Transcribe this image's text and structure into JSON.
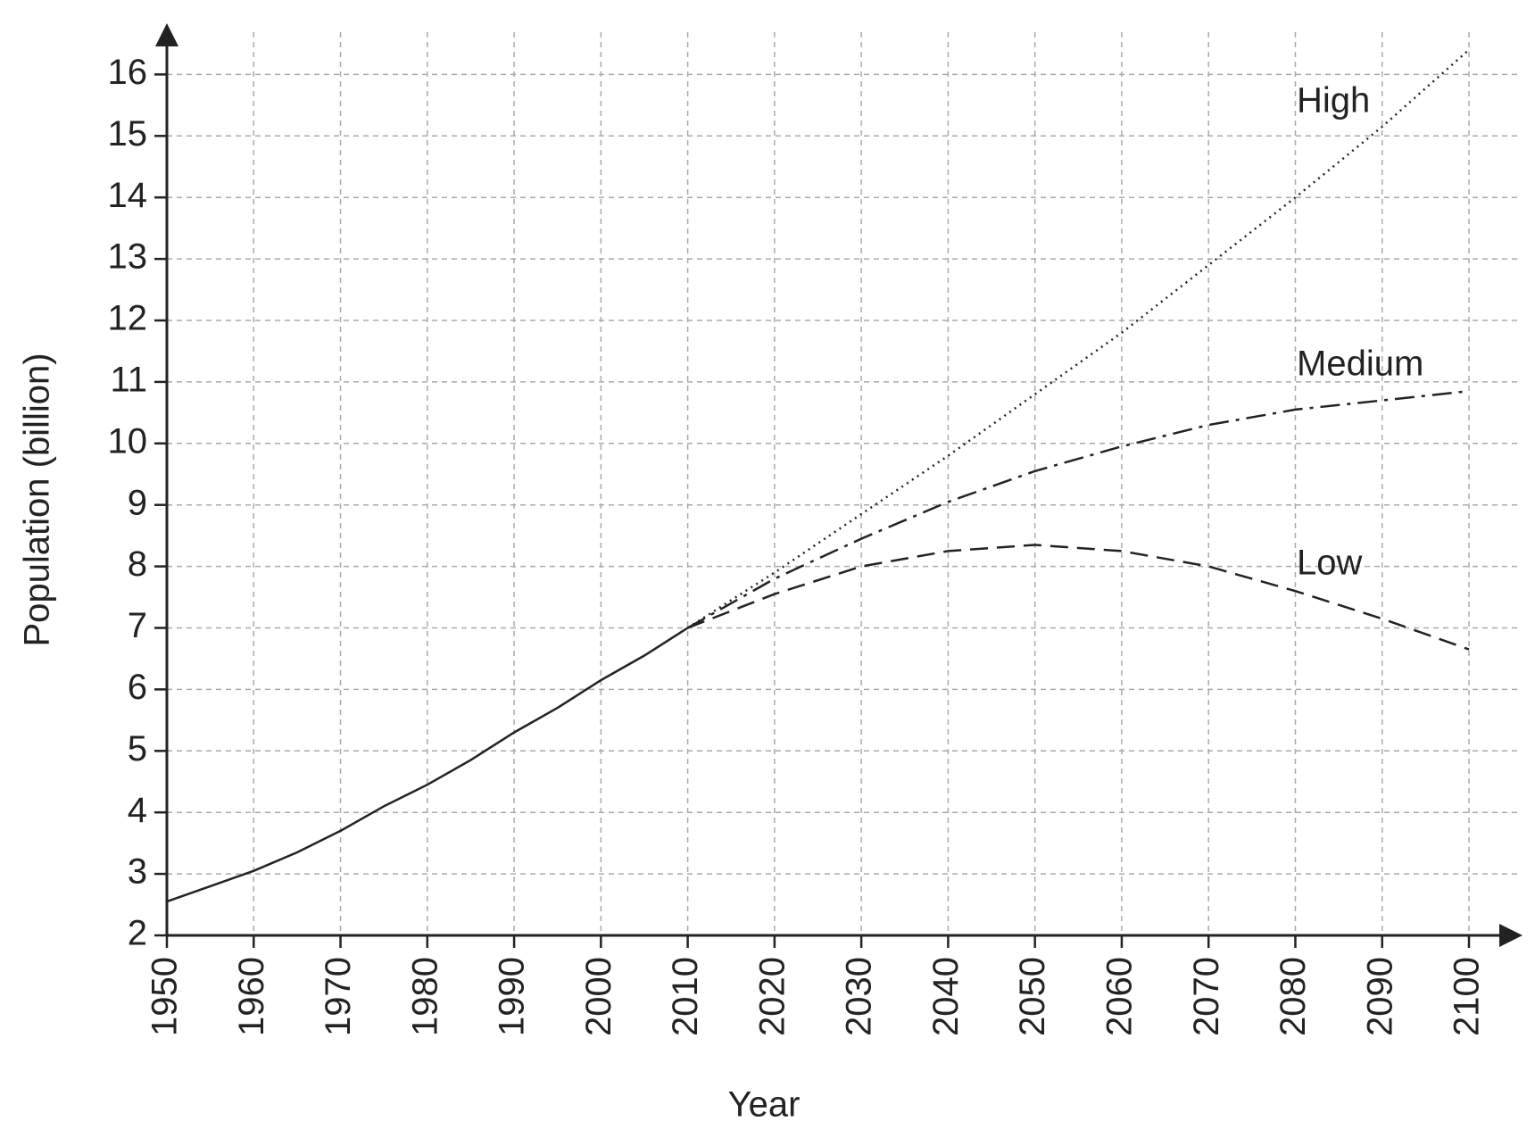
{
  "chart_data": {
    "type": "line",
    "x_label": "Year",
    "y_label": "Population (billion)",
    "xlim": [
      1950,
      2100
    ],
    "ylim": [
      2,
      16.5
    ],
    "xticks": [
      1950,
      1960,
      1970,
      1980,
      1990,
      2000,
      2010,
      2020,
      2030,
      2040,
      2050,
      2060,
      2070,
      2080,
      2090,
      2100
    ],
    "yticks": [
      2,
      3,
      4,
      5,
      6,
      7,
      8,
      9,
      10,
      11,
      12,
      13,
      14,
      15,
      16
    ],
    "grid": true,
    "series": [
      {
        "color": "#222222",
        "dash": "solid",
        "x": [
          1950,
          1955,
          1960,
          1965,
          1970,
          1975,
          1980,
          1985,
          1990,
          1995,
          2000,
          2005,
          2010
        ],
        "values": [
          2.55,
          2.8,
          3.05,
          3.35,
          3.7,
          4.1,
          4.45,
          4.85,
          5.3,
          5.7,
          6.15,
          6.55,
          7.0
        ]
      },
      {
        "name": "High",
        "color": "#222222",
        "dash": "dotted",
        "x": [
          2010,
          2020,
          2030,
          2040,
          2050,
          2060,
          2070,
          2080,
          2090,
          2100
        ],
        "values": [
          7.0,
          7.9,
          8.85,
          9.8,
          10.8,
          11.8,
          12.9,
          14.0,
          15.15,
          16.4
        ]
      },
      {
        "name": "Medium",
        "color": "#222222",
        "dash": "dashdot",
        "x": [
          2010,
          2020,
          2030,
          2040,
          2050,
          2060,
          2070,
          2080,
          2090,
          2100
        ],
        "values": [
          7.0,
          7.8,
          8.45,
          9.05,
          9.55,
          9.95,
          10.3,
          10.55,
          10.7,
          10.85
        ]
      },
      {
        "name": "Low",
        "color": "#222222",
        "dash": "dashed",
        "x": [
          2010,
          2020,
          2030,
          2040,
          2050,
          2060,
          2070,
          2080,
          2090,
          2100
        ],
        "values": [
          7.0,
          7.55,
          8.0,
          8.25,
          8.35,
          8.25,
          8.0,
          7.6,
          7.15,
          6.65
        ]
      }
    ]
  }
}
